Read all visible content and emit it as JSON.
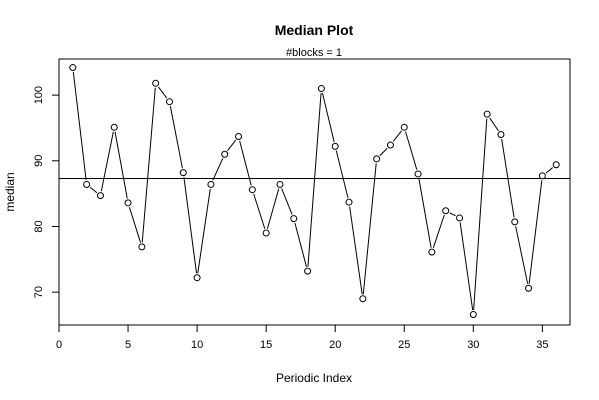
{
  "chart_data": {
    "type": "line",
    "title": "Median Plot",
    "subtitle": "#blocks =  1",
    "xlabel": "Periodic Index",
    "ylabel": "median",
    "xlim": [
      0,
      37
    ],
    "ylim": [
      65,
      105.5
    ],
    "x_ticks": [
      0,
      5,
      10,
      15,
      20,
      25,
      30,
      35
    ],
    "y_ticks": [
      70,
      80,
      90,
      100
    ],
    "reference_line": 87.3,
    "grid": false,
    "legend": "none",
    "series": [
      {
        "x": [
          1,
          2,
          3,
          4,
          5,
          6,
          7,
          8,
          9,
          10,
          11,
          12,
          13,
          14,
          15,
          16,
          17,
          18,
          19,
          20,
          21,
          22,
          23,
          24,
          25,
          26,
          27,
          28,
          29,
          30,
          31,
          32,
          33,
          34,
          35,
          36
        ],
        "values": [
          104.2,
          86.4,
          84.7,
          95.1,
          83.6,
          76.9,
          101.8,
          99.0,
          88.2,
          72.2,
          86.4,
          91.0,
          93.7,
          85.6,
          79.0,
          86.4,
          81.2,
          73.2,
          101.0,
          92.2,
          83.7,
          69.0,
          90.3,
          92.4,
          95.1,
          88.0,
          76.1,
          82.4,
          81.3,
          66.6,
          97.1,
          94.0,
          80.7,
          70.6,
          87.7,
          89.4
        ]
      }
    ]
  }
}
